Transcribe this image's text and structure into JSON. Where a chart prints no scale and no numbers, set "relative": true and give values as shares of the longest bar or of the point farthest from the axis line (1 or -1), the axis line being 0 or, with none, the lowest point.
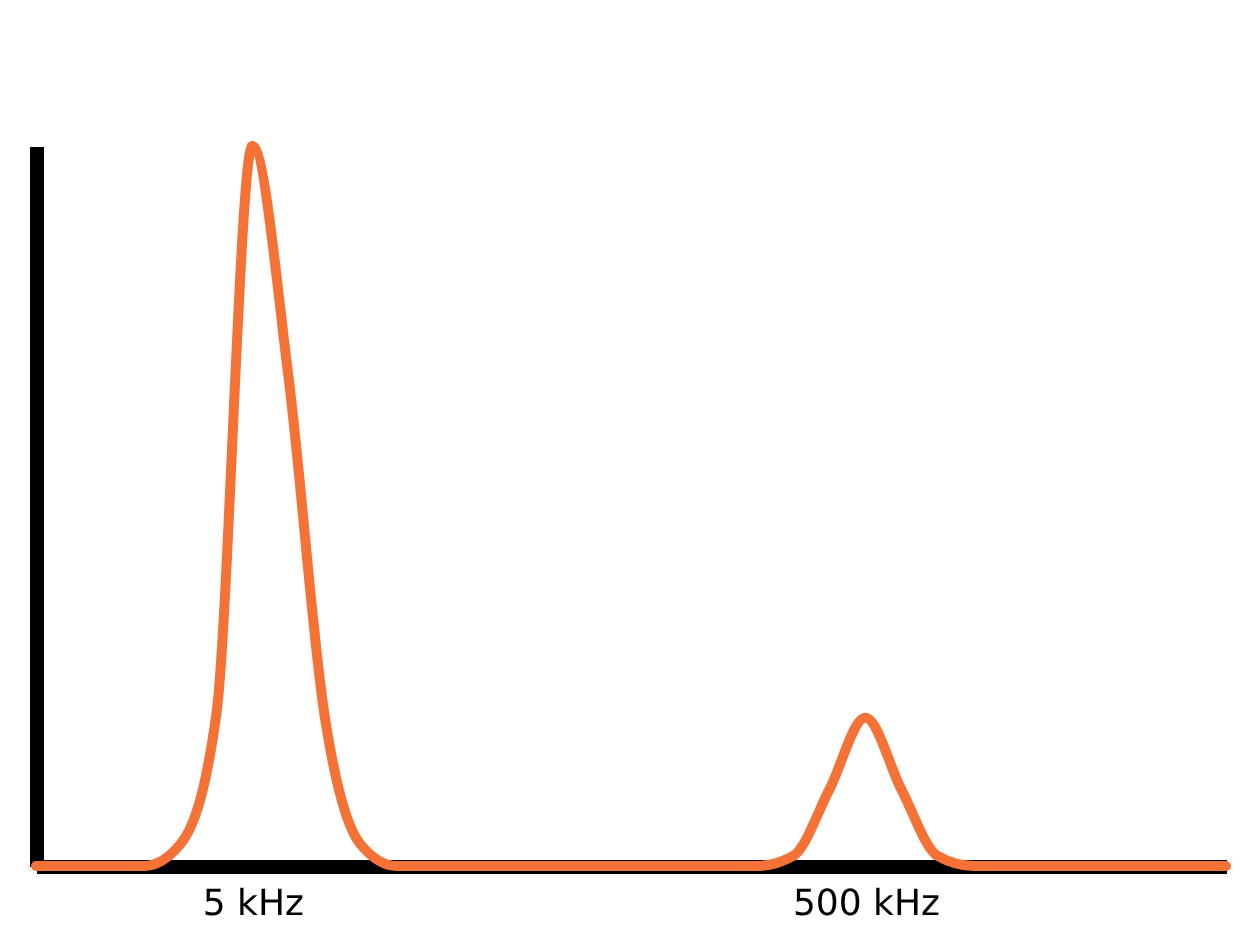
{
  "chart_data": {
    "type": "line",
    "relative": true,
    "categories": [
      null,
      null,
      null,
      null,
      null,
      null,
      "5 kHz",
      null,
      null,
      null,
      null,
      null,
      null,
      null,
      null,
      null,
      null,
      null,
      null,
      null,
      null,
      null,
      null,
      "500 kHz",
      null,
      null,
      null,
      null,
      null,
      null,
      null,
      null,
      null,
      null
    ],
    "series": [
      {
        "color": "#f47236",
        "values": [
          0,
          0,
          0,
          0,
          0.03,
          0.21,
          1,
          0.68,
          0.21,
          0.03,
          0,
          0,
          0,
          0,
          0,
          0,
          0,
          0,
          0,
          0,
          0,
          0.014,
          0.106,
          0.206,
          0.106,
          0.014,
          0,
          0,
          0,
          0,
          0,
          0,
          0,
          0
        ]
      }
    ],
    "grid": false,
    "marker": "none",
    "line_style": "solid"
  }
}
